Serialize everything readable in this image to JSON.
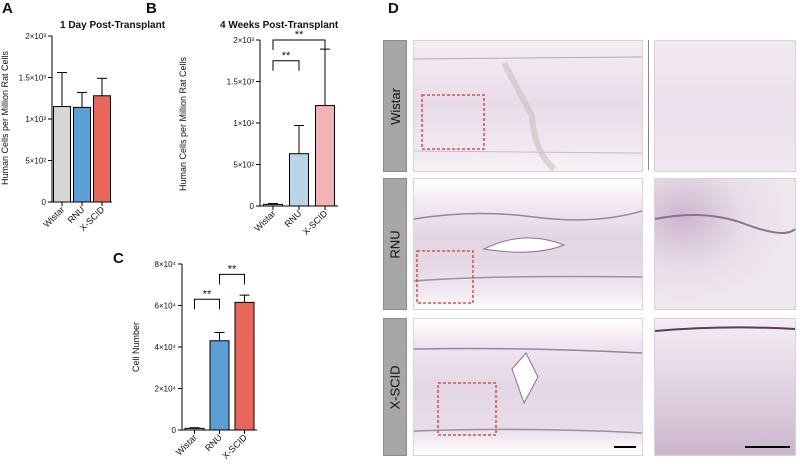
{
  "panels": {
    "A": {
      "label": "A",
      "title": "1 Day Post-Transplant",
      "ylabel": "Human Cells per Million Rat Cells"
    },
    "B": {
      "label": "B",
      "title": "4 Weeks Post-Transplant",
      "ylabel": "Human Cells per Million Rat Cells"
    },
    "C": {
      "label": "C",
      "ylabel": "Cell Number"
    },
    "D": {
      "label": "D",
      "rows": [
        "Wistar",
        "RNU",
        "X-SCID"
      ]
    }
  },
  "colors": {
    "Wistar": "#d6d6d6",
    "RNU": "#5b9fd6",
    "X-SCID": "#e8675b",
    "RNU_light": "#b9d6e8",
    "X-SCID_light": "#f2b3b6",
    "inset_box": "#d9342b"
  },
  "chart_data": [
    {
      "panel": "A",
      "type": "bar",
      "title": "1 Day Post-Transplant",
      "xlabel": "",
      "ylabel": "Human Cells per Million Rat Cells",
      "categories": [
        "Wistar",
        "RNU",
        "X-SCID"
      ],
      "values": [
        1150,
        1140,
        1280
      ],
      "errors": [
        410,
        180,
        210
      ],
      "ylim": [
        0,
        2000
      ],
      "yticks": [
        0,
        500,
        1000,
        1500,
        2000
      ],
      "ytick_labels": [
        "0",
        "5×10²",
        "1×10³",
        "1.5×10³",
        "2×10³"
      ],
      "significance": []
    },
    {
      "panel": "B",
      "type": "bar",
      "title": "4 Weeks Post-Transplant",
      "xlabel": "",
      "ylabel": "Human Cells per Million Rat Cells",
      "categories": [
        "Wistar",
        "RNU",
        "X-SCID"
      ],
      "values": [
        20,
        630,
        1210
      ],
      "errors": [
        10,
        340,
        680
      ],
      "ylim": [
        0,
        2000
      ],
      "yticks": [
        0,
        500,
        1000,
        1500,
        2000
      ],
      "ytick_labels": [
        "0",
        "5×10²",
        "1×10³",
        "1.5×10³",
        "2×10³"
      ],
      "significance": [
        {
          "from": 0,
          "to": 1,
          "label": "**",
          "y": 1750
        },
        {
          "from": 0,
          "to": 2,
          "label": "**",
          "y": 2000
        }
      ]
    },
    {
      "panel": "C",
      "type": "bar",
      "title": "",
      "xlabel": "",
      "ylabel": "Cell Number",
      "categories": [
        "Wistar",
        "RNU",
        "X-SCID"
      ],
      "values": [
        800,
        43000,
        61500
      ],
      "errors": [
        300,
        4000,
        3500
      ],
      "ylim": [
        0,
        80000
      ],
      "yticks": [
        0,
        20000,
        40000,
        60000,
        80000
      ],
      "ytick_labels": [
        "0",
        "2×10⁴",
        "4×10⁴",
        "6×10⁴",
        "8×10⁴"
      ],
      "significance": [
        {
          "from": 0,
          "to": 1,
          "label": "**",
          "y": 63000
        },
        {
          "from": 1,
          "to": 2,
          "label": "**",
          "y": 75000
        }
      ]
    }
  ]
}
